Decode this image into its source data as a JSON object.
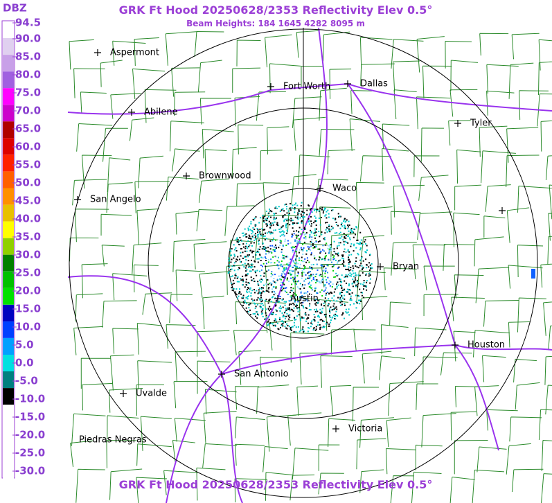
{
  "header": {
    "title": "GRK Ft Hood 20250628/2353 Reflectivity Elev 0.5°",
    "subtitle": "Beam Heights: 184 1645 4282 8095 m"
  },
  "legend": {
    "unit": "DBZ",
    "labels": [
      "94.5",
      "90.0",
      "85.0",
      "80.0",
      "75.0",
      "70.0",
      "65.0",
      "60.0",
      "55.0",
      "50.0",
      "45.0",
      "40.0",
      "35.0",
      "30.0",
      "25.0",
      "20.0",
      "15.0",
      "10.0",
      "5.0",
      "0.0",
      "-5.0",
      "-10.0",
      "-15.0",
      "-20.0",
      "-25.0",
      "-30.0"
    ]
  },
  "cities": [
    {
      "name": "Aspermont"
    },
    {
      "name": "Abilene"
    },
    {
      "name": "Fort Worth"
    },
    {
      "name": "Dallas"
    },
    {
      "name": "Tyler"
    },
    {
      "name": "Brownwood"
    },
    {
      "name": "San Angelo"
    },
    {
      "name": "Waco"
    },
    {
      "name": "Bryan"
    },
    {
      "name": "Austin"
    },
    {
      "name": "Houston"
    },
    {
      "name": "San Antonio"
    },
    {
      "name": "Uvalde"
    },
    {
      "name": "Victoria"
    },
    {
      "name": "Piedras Negras"
    }
  ],
  "footer": {
    "title": "GRK Ft Hood 20250628/2353 Reflectivity Elev 0.5°"
  }
}
